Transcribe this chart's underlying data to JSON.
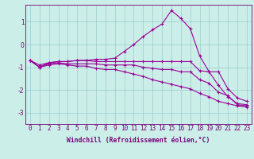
{
  "xlabel": "Windchill (Refroidissement éolien,°C)",
  "background_color": "#cceee8",
  "grid_color": "#99cccc",
  "line_color": "#990099",
  "x_ticks": [
    0,
    1,
    2,
    3,
    4,
    5,
    6,
    7,
    8,
    9,
    10,
    11,
    12,
    13,
    14,
    15,
    16,
    17,
    18,
    19,
    20,
    21,
    22,
    23
  ],
  "y_ticks": [
    -3,
    -2,
    -1,
    0,
    1
  ],
  "xlim": [
    -0.5,
    23.5
  ],
  "ylim": [
    -3.5,
    1.75
  ],
  "lines": [
    [
      -0.7,
      -0.9,
      -0.8,
      -0.75,
      -0.75,
      -0.7,
      -0.7,
      -0.65,
      -0.65,
      -0.6,
      -0.3,
      0.0,
      0.35,
      0.65,
      0.9,
      1.5,
      1.15,
      0.7,
      -0.5,
      -1.2,
      -1.8,
      -2.3,
      -2.6,
      -2.65
    ],
    [
      -0.7,
      -1.0,
      -0.8,
      -0.75,
      -0.75,
      -0.7,
      -0.7,
      -0.75,
      -0.75,
      -0.75,
      -0.75,
      -0.75,
      -0.75,
      -0.75,
      -0.75,
      -0.75,
      -0.75,
      -0.75,
      -1.15,
      -1.2,
      -1.2,
      -1.95,
      -2.35,
      -2.5
    ],
    [
      -0.7,
      -1.0,
      -0.85,
      -0.8,
      -0.85,
      -0.85,
      -0.85,
      -0.85,
      -0.9,
      -0.9,
      -0.9,
      -0.9,
      -1.0,
      -1.05,
      -1.1,
      -1.1,
      -1.2,
      -1.2,
      -1.55,
      -1.7,
      -2.1,
      -2.25,
      -2.65,
      -2.7
    ],
    [
      -0.7,
      -1.0,
      -0.9,
      -0.85,
      -0.9,
      -0.95,
      -0.95,
      -1.05,
      -1.1,
      -1.1,
      -1.2,
      -1.3,
      -1.4,
      -1.55,
      -1.65,
      -1.75,
      -1.85,
      -1.95,
      -2.15,
      -2.3,
      -2.5,
      -2.6,
      -2.7,
      -2.75
    ]
  ],
  "tick_fontsize": 5.5,
  "xlabel_fontsize": 5.8,
  "tick_color": "#770077",
  "spine_color": "#770077"
}
